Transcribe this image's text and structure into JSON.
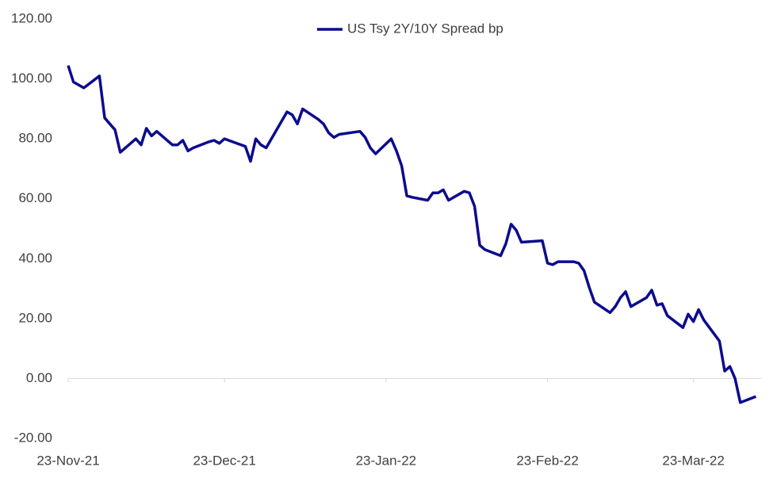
{
  "chart_data": {
    "type": "line",
    "x": [
      "2021-11-23",
      "2021-11-24",
      "2021-11-26",
      "2021-11-29",
      "2021-11-30",
      "2021-12-01",
      "2021-12-02",
      "2021-12-03",
      "2021-12-06",
      "2021-12-07",
      "2021-12-08",
      "2021-12-09",
      "2021-12-10",
      "2021-12-13",
      "2021-12-14",
      "2021-12-15",
      "2021-12-16",
      "2021-12-17",
      "2021-12-20",
      "2021-12-21",
      "2021-12-22",
      "2021-12-23",
      "2021-12-27",
      "2021-12-28",
      "2021-12-29",
      "2021-12-30",
      "2021-12-31",
      "2022-01-03",
      "2022-01-04",
      "2022-01-05",
      "2022-01-06",
      "2022-01-07",
      "2022-01-10",
      "2022-01-11",
      "2022-01-12",
      "2022-01-13",
      "2022-01-14",
      "2022-01-18",
      "2022-01-19",
      "2022-01-20",
      "2022-01-21",
      "2022-01-24",
      "2022-01-25",
      "2022-01-26",
      "2022-01-27",
      "2022-01-28",
      "2022-01-31",
      "2022-02-01",
      "2022-02-02",
      "2022-02-03",
      "2022-02-04",
      "2022-02-07",
      "2022-02-08",
      "2022-02-09",
      "2022-02-10",
      "2022-02-11",
      "2022-02-14",
      "2022-02-15",
      "2022-02-16",
      "2022-02-17",
      "2022-02-18",
      "2022-02-22",
      "2022-02-23",
      "2022-02-24",
      "2022-02-25",
      "2022-02-28",
      "2022-03-01",
      "2022-03-02",
      "2022-03-03",
      "2022-03-04",
      "2022-03-07",
      "2022-03-08",
      "2022-03-09",
      "2022-03-10",
      "2022-03-11",
      "2022-03-14",
      "2022-03-15",
      "2022-03-16",
      "2022-03-17",
      "2022-03-18",
      "2022-03-21",
      "2022-03-22",
      "2022-03-23",
      "2022-03-24",
      "2022-03-25",
      "2022-03-28",
      "2022-03-29",
      "2022-03-30",
      "2022-03-31",
      "2022-04-01",
      "2022-04-04"
    ],
    "series": [
      {
        "name": "US Tsy 2Y/10Y Spread bp",
        "color": "#0c0c8e",
        "values": [
          104.5,
          99,
          97,
          101,
          87,
          85,
          83,
          75.5,
          80,
          78,
          83.5,
          81,
          82.5,
          78,
          78,
          79.5,
          76,
          77,
          79,
          79.5,
          78.5,
          80,
          77.5,
          72.5,
          80,
          78,
          77,
          86,
          89,
          88,
          85,
          90,
          86.5,
          85,
          82,
          80.5,
          81.5,
          82.5,
          80.5,
          77,
          75,
          80,
          76,
          71,
          61,
          60.5,
          59.5,
          62,
          62,
          63,
          59.5,
          62.5,
          62,
          57.5,
          44.5,
          43,
          41,
          45,
          51.5,
          49.5,
          45.5,
          46,
          38.5,
          38,
          39,
          39,
          38.5,
          36,
          30.5,
          25.5,
          22,
          24,
          27,
          29,
          24,
          27,
          29.5,
          24.5,
          25,
          21,
          17,
          21.5,
          19,
          23,
          19.5,
          12.5,
          2.5,
          4,
          0,
          -8,
          -6
        ]
      }
    ],
    "xlim": [
      "2021-11-23",
      "2022-04-05"
    ],
    "xticks": [
      {
        "value": "2021-11-23",
        "label": "23-Nov-21"
      },
      {
        "value": "2021-12-23",
        "label": "23-Dec-21"
      },
      {
        "value": "2022-01-23",
        "label": "23-Jan-22"
      },
      {
        "value": "2022-02-23",
        "label": "23-Feb-22"
      },
      {
        "value": "2022-03-23",
        "label": "23-Mar-22"
      }
    ],
    "ylim": [
      -20,
      120
    ],
    "yticks": [
      {
        "value": -20,
        "label": "-20.00"
      },
      {
        "value": 0,
        "label": "0.00"
      },
      {
        "value": 20,
        "label": "20.00"
      },
      {
        "value": 40,
        "label": "40.00"
      },
      {
        "value": 60,
        "label": "60.00"
      },
      {
        "value": 80,
        "label": "80.00"
      },
      {
        "value": 100,
        "label": "100.00"
      },
      {
        "value": 120,
        "label": "120.00"
      }
    ],
    "grid": false,
    "legend": "top"
  }
}
